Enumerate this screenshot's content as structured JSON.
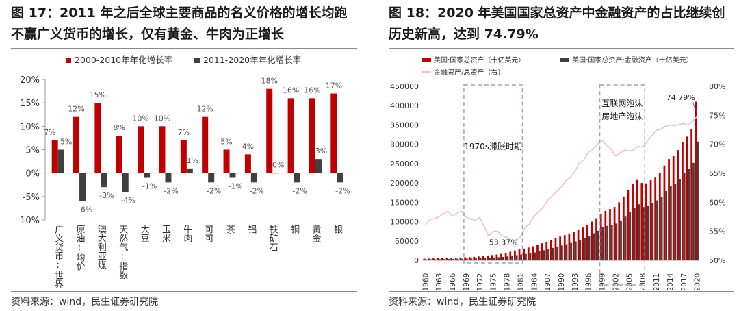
{
  "left": {
    "title": "图 17：2011 年之后全球主要商品的名义价格的增长均跑不赢广义货币的增长，仅有黄金、牛肉为正增长",
    "source": "资料来源：wind，民生证券研究院"
  },
  "right": {
    "title": "图 18：2020 年美国国家总资产中金融资产的占比继续创历史新高，达到 74.79%",
    "source": "资料来源：wind，民生证券研究院"
  },
  "colors": {
    "red": "#c00000",
    "dark": "#404040",
    "pink": "#f2c2c2",
    "dash": "#8fa9c9"
  },
  "chart_data": [
    {
      "type": "bar",
      "categories": [
        "广义货币:世界",
        "原油:均价",
        "澳大利亚煤",
        "天然气:指数",
        "大豆",
        "玉米",
        "牛肉",
        "可可",
        "茶",
        "铝",
        "铁矿石",
        "铜",
        "黄金",
        "银"
      ],
      "series": [
        {
          "name": "2000-2010年年化增长率",
          "values": [
            7,
            12,
            15,
            8,
            10,
            10,
            7,
            12,
            5,
            4,
            18,
            16,
            16,
            17
          ],
          "labels": [
            "7%",
            "12%",
            "15%",
            "8%",
            "10%",
            "10%",
            "7%",
            "12%",
            "5%",
            "4%",
            "18%",
            "16%",
            "16%",
            "17%"
          ]
        },
        {
          "name": "2011-2020年年化增长率",
          "values": [
            5,
            -6,
            -3,
            -4,
            -1,
            -2,
            1,
            -2,
            -1,
            -2,
            0,
            -2,
            3,
            -2
          ],
          "labels": [
            "5%",
            "-6%",
            "-3%",
            "-4%",
            "-1%",
            "-2%",
            "1%",
            "-2%",
            "-1%",
            "-2%",
            "0%",
            "-2%",
            "3%",
            "-2%"
          ]
        }
      ],
      "ylim": [
        -10,
        20
      ],
      "yticks": [
        "-10%",
        "-5%",
        "0%",
        "5%",
        "10%",
        "15%",
        "20%"
      ],
      "legend_position": "top",
      "grid": false
    },
    {
      "type": "bar+line",
      "years": [
        1960,
        1961,
        1962,
        1963,
        1964,
        1965,
        1966,
        1967,
        1968,
        1969,
        1970,
        1971,
        1972,
        1973,
        1974,
        1975,
        1976,
        1977,
        1978,
        1979,
        1980,
        1981,
        1982,
        1983,
        1984,
        1985,
        1986,
        1987,
        1988,
        1989,
        1990,
        1991,
        1992,
        1993,
        1994,
        1995,
        1996,
        1997,
        1998,
        1999,
        2000,
        2001,
        2002,
        2003,
        2004,
        2005,
        2006,
        2007,
        2008,
        2009,
        2010,
        2011,
        2012,
        2013,
        2014,
        2015,
        2016,
        2017,
        2018,
        2019,
        2020
      ],
      "xtick_labels": [
        "1960",
        "1963",
        "1966",
        "1969",
        "1972",
        "1975",
        "1978",
        "1981",
        "1984",
        "1987",
        "1990",
        "1993",
        "1996",
        "1999",
        "2002",
        "2005",
        "2008",
        "2011",
        "2014",
        "2017",
        "2020"
      ],
      "series": [
        {
          "name": "美国:国家总资产（十亿美元）",
          "axis": "left",
          "kind": "bar",
          "values": [
            4500,
            4700,
            5000,
            5300,
            5600,
            6000,
            6400,
            6800,
            7300,
            7900,
            8500,
            9200,
            10100,
            11200,
            12500,
            13600,
            14900,
            16800,
            19200,
            22100,
            25400,
            28300,
            30400,
            33200,
            36200,
            40000,
            44000,
            48000,
            52500,
            57500,
            61500,
            65200,
            69400,
            74000,
            78200,
            84600,
            91400,
            100000,
            109000,
            120000,
            128000,
            133000,
            138000,
            150000,
            165000,
            182000,
            197000,
            208000,
            200000,
            199000,
            207000,
            214000,
            226000,
            245000,
            262000,
            270000,
            285000,
            306000,
            320000,
            340000,
            410000
          ]
        },
        {
          "name": "美国:国家总资产:金融资产（十亿美元）",
          "axis": "left",
          "kind": "bar",
          "values": [
            2600,
            2750,
            2900,
            3100,
            3250,
            3500,
            3650,
            3950,
            4300,
            4550,
            4800,
            5200,
            5800,
            6300,
            6700,
            7300,
            8000,
            8900,
            10200,
            11700,
            13600,
            15100,
            16500,
            18400,
            20300,
            23000,
            26000,
            29000,
            32200,
            35500,
            38500,
            41500,
            45000,
            49000,
            52500,
            57500,
            63500,
            70000,
            76500,
            85000,
            89000,
            92000,
            95000,
            103000,
            113000,
            125000,
            136000,
            145000,
            138000,
            140000,
            148000,
            155000,
            164000,
            179000,
            192000,
            198000,
            209000,
            226000,
            236000,
            252000,
            307000
          ]
        },
        {
          "name": "金融资产/总资产（右）",
          "axis": "right",
          "kind": "line",
          "values": [
            56.0,
            57.0,
            57.2,
            57.5,
            58.0,
            58.5,
            57.6,
            58.1,
            58.5,
            57.5,
            57.1,
            56.9,
            57.4,
            55.9,
            54.2,
            55.0,
            55.0,
            54.2,
            54.0,
            53.5,
            53.37,
            54.0,
            55.6,
            56.3,
            57.6,
            58.4,
            59.1,
            60.3,
            61.1,
            61.8,
            62.6,
            63.7,
            64.3,
            65.3,
            66.7,
            67.3,
            68.6,
            69.1,
            70.0,
            70.7,
            69.9,
            69.2,
            68.0,
            68.5,
            69.0,
            68.9,
            69.0,
            69.7,
            69.5,
            70.5,
            71.5,
            72.4,
            72.6,
            73.1,
            73.3,
            73.2,
            73.4,
            73.6,
            73.3,
            74.0,
            74.79
          ]
        }
      ],
      "ylim_left": [
        0,
        450000
      ],
      "ylim_right": [
        50,
        80
      ],
      "yticks_left": [
        "0",
        "50000",
        "100000",
        "150000",
        "200000",
        "250000",
        "300000",
        "350000",
        "400000",
        "450000"
      ],
      "yticks_right": [
        "50%",
        "55%",
        "60%",
        "65%",
        "70%",
        "75%",
        "80%"
      ],
      "annotations": {
        "box1_label": "1970s滞胀时期",
        "box2_label_1": "互联网泡沫",
        "box2_label_2": "房地产泡沫",
        "low_label": "53.37%",
        "high_label": "74.79%"
      },
      "legend_position": "top",
      "grid": false
    }
  ]
}
